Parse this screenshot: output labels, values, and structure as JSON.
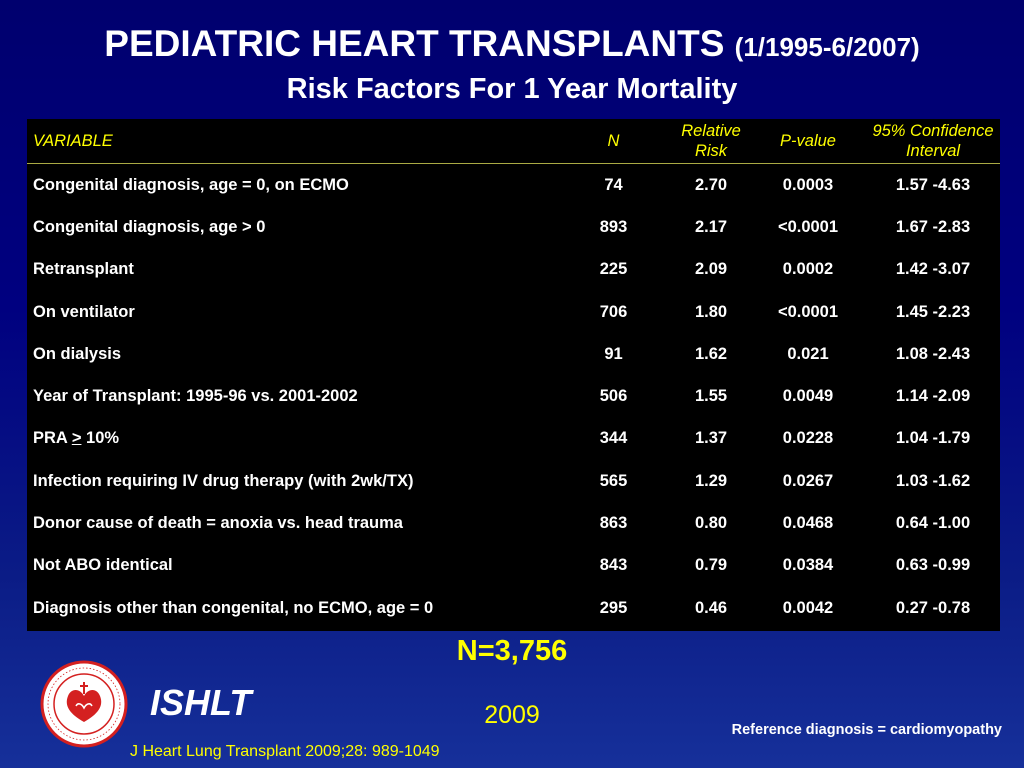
{
  "title": {
    "main": "PEDIATRIC HEART TRANSPLANTS",
    "date_range": "(1/1995-6/2007)",
    "subtitle": "Risk Factors For 1 Year Mortality"
  },
  "table": {
    "headers": {
      "variable": "VARIABLE",
      "n": "N",
      "rr_line1": "Relative",
      "rr_line2": "Risk",
      "pvalue": "P-value",
      "ci_line1": "95% Confidence",
      "ci_line2": "Interval"
    },
    "rows": [
      {
        "variable": "Congenital diagnosis, age = 0, on ECMO",
        "n": "74",
        "rr": "2.70",
        "p": "0.0003",
        "ci_low": "1.57",
        "ci_high": "-4.63"
      },
      {
        "variable": "Congenital diagnosis, age > 0",
        "n": "893",
        "rr": "2.17",
        "p": "<0.0001",
        "ci_low": "1.67",
        "ci_high": "-2.83"
      },
      {
        "variable": "Retransplant",
        "n": "225",
        "rr": "2.09",
        "p": "0.0002",
        "ci_low": "1.42",
        "ci_high": "-3.07"
      },
      {
        "variable": "On ventilator",
        "n": "706",
        "rr": "1.80",
        "p": "<0.0001",
        "ci_low": "1.45",
        "ci_high": "-2.23"
      },
      {
        "variable": "On dialysis",
        "n": "91",
        "rr": "1.62",
        "p": "0.021",
        "ci_low": "1.08",
        "ci_high": "-2.43"
      },
      {
        "variable": "Year of Transplant: 1995-96 vs. 2001-2002",
        "n": "506",
        "rr": "1.55",
        "p": "0.0049",
        "ci_low": "1.14",
        "ci_high": "-2.09"
      },
      {
        "variable_prefix": "PRA ",
        "variable_symbol": ">",
        "variable_suffix": " 10%",
        "n": "344",
        "rr": "1.37",
        "p": "0.0228",
        "ci_low": "1.04",
        "ci_high": "-1.79"
      },
      {
        "variable": "Infection requiring IV drug therapy (with 2wk/TX)",
        "n": "565",
        "rr": "1.29",
        "p": "0.0267",
        "ci_low": "1.03",
        "ci_high": "-1.62"
      },
      {
        "variable": "Donor cause of death = anoxia vs. head trauma",
        "n": "863",
        "rr": "0.80",
        "p": "0.0468",
        "ci_low": "0.64",
        "ci_high": "-1.00"
      },
      {
        "variable": "Not ABO identical",
        "n": "843",
        "rr": "0.79",
        "p": "0.0384",
        "ci_low": "0.63",
        "ci_high": "-0.99"
      },
      {
        "variable": "Diagnosis other than congenital, no ECMO, age = 0",
        "n": "295",
        "rr": "0.46",
        "p": "0.0042",
        "ci_low": "0.27",
        "ci_high": "-0.78"
      }
    ]
  },
  "total_n": "N=3,756",
  "footer": {
    "logo_label": "ISHLT",
    "year": "2009",
    "reference": "Reference diagnosis = cardiomyopathy",
    "citation": "J Heart Lung Transplant 2009;28: 989-1049"
  },
  "colors": {
    "background": "#000080",
    "accent_yellow": "#ffff00",
    "table_bg": "#000000",
    "logo_red": "#d42020"
  },
  "icons": {
    "logo": "ishlt-seal-icon"
  }
}
